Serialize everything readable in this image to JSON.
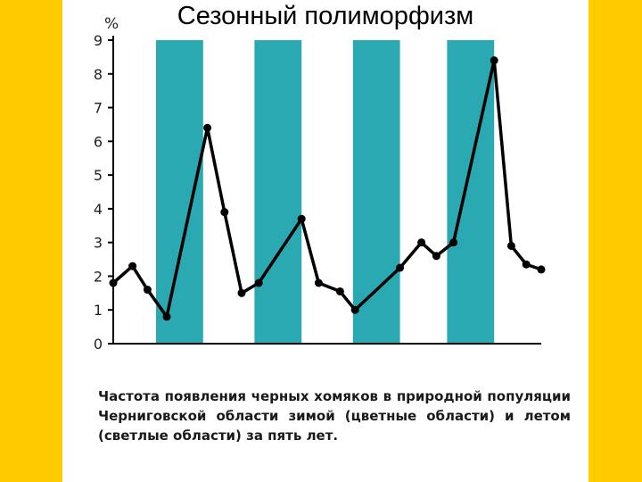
{
  "slide": {
    "title": "Сезонный полиморфизм",
    "caption": "Частота появления черных хомяков в природной популяции Черниговской области зимой (цветные области) и летом (светлые области) за пять лет."
  },
  "colors": {
    "background": "#FFCC00",
    "winter_band": "#2BA9B3",
    "line": "#000000"
  },
  "chart_data": {
    "type": "line",
    "title": "",
    "xlabel": "",
    "ylabel": "%",
    "ylim": [
      0,
      9
    ],
    "yticks": [
      0,
      1,
      2,
      3,
      4,
      5,
      6,
      7,
      8,
      9
    ],
    "xlim": [
      0,
      10
    ],
    "bands": [
      {
        "from": 1.0,
        "to": 2.1,
        "season": "winter"
      },
      {
        "from": 3.3,
        "to": 4.4,
        "season": "winter"
      },
      {
        "from": 5.6,
        "to": 6.7,
        "season": "winter"
      },
      {
        "from": 7.8,
        "to": 8.9,
        "season": "winter"
      }
    ],
    "series": [
      {
        "x": [
          0.0,
          0.45,
          0.8,
          1.25,
          2.2,
          2.6,
          3.0,
          3.4,
          4.4,
          4.8,
          5.3,
          5.65,
          6.7,
          7.2,
          7.55,
          7.95,
          8.9,
          9.3,
          9.65,
          10.0
        ],
        "values": [
          1.8,
          2.3,
          1.6,
          0.8,
          6.4,
          3.9,
          1.5,
          1.8,
          3.7,
          1.8,
          1.55,
          1.0,
          2.25,
          3.0,
          2.6,
          3.0,
          8.4,
          2.9,
          2.35,
          2.2
        ]
      }
    ]
  }
}
